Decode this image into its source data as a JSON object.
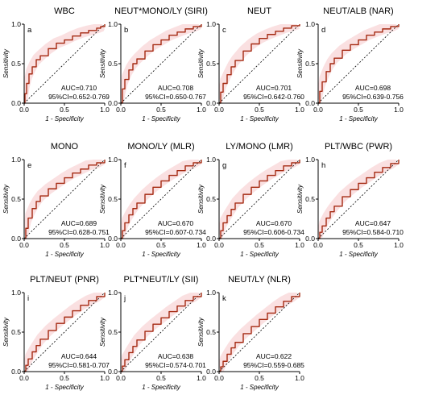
{
  "chart_data": [
    {
      "type": "line",
      "letter": "a",
      "title": "WBC",
      "xlabel": "1 - Specificity",
      "ylabel": "Sensitivity",
      "xlim": [
        0,
        1
      ],
      "ylim": [
        0,
        1
      ],
      "xticks": [
        "0.0",
        "0.5",
        "1.0"
      ],
      "yticks": [
        "0.0",
        "0.5",
        "1.0"
      ],
      "auc_label": "AUC=0.710",
      "ci_label": "95%CI=0.652-0.769",
      "series": [
        {
          "x": [
            0,
            0.01,
            0.03,
            0.06,
            0.1,
            0.15,
            0.2,
            0.3,
            0.4,
            0.5,
            0.6,
            0.7,
            0.8,
            0.9,
            0.95,
            1
          ],
          "y": [
            0,
            0.12,
            0.25,
            0.37,
            0.46,
            0.55,
            0.6,
            0.69,
            0.76,
            0.8,
            0.85,
            0.89,
            0.92,
            0.95,
            0.97,
            1
          ]
        }
      ],
      "reference_line": {
        "x": [
          0,
          1
        ],
        "y": [
          0,
          1
        ]
      }
    },
    {
      "type": "line",
      "letter": "b",
      "title": "NEUT*MONO/LY (SIRI)",
      "xlabel": "1 - Specificity",
      "ylabel": "Sensitivity",
      "xlim": [
        0,
        1
      ],
      "ylim": [
        0,
        1
      ],
      "xticks": [
        "0.0",
        "0.5",
        "1.0"
      ],
      "yticks": [
        "0.0",
        "0.5",
        "1.0"
      ],
      "auc_label": "AUC=0.708",
      "ci_label": "95%CI=0.650-0.767",
      "series": [
        {
          "x": [
            0,
            0.02,
            0.05,
            0.1,
            0.15,
            0.2,
            0.3,
            0.4,
            0.5,
            0.6,
            0.7,
            0.8,
            0.9,
            1
          ],
          "y": [
            0,
            0.18,
            0.3,
            0.42,
            0.5,
            0.56,
            0.66,
            0.74,
            0.8,
            0.86,
            0.9,
            0.94,
            0.97,
            1
          ]
        }
      ],
      "reference_line": {
        "x": [
          0,
          1
        ],
        "y": [
          0,
          1
        ]
      }
    },
    {
      "type": "line",
      "letter": "c",
      "title": "NEUT",
      "xlabel": "1 - Specificity",
      "ylabel": "Sensitivity",
      "xlim": [
        0,
        1
      ],
      "ylim": [
        0,
        1
      ],
      "xticks": [
        "0.0",
        "0.5",
        "1.0"
      ],
      "yticks": [
        "0.0",
        "0.5",
        "1.0"
      ],
      "auc_label": "AUC=0.701",
      "ci_label": "95%CI=0.642-0.760",
      "series": [
        {
          "x": [
            0,
            0.02,
            0.05,
            0.1,
            0.15,
            0.2,
            0.3,
            0.4,
            0.5,
            0.6,
            0.7,
            0.8,
            0.9,
            1
          ],
          "y": [
            0,
            0.14,
            0.25,
            0.36,
            0.46,
            0.54,
            0.66,
            0.75,
            0.82,
            0.87,
            0.91,
            0.95,
            0.98,
            1
          ]
        }
      ],
      "reference_line": {
        "x": [
          0,
          1
        ],
        "y": [
          0,
          1
        ]
      }
    },
    {
      "type": "line",
      "letter": "d",
      "title": "NEUT/ALB (NAR)",
      "xlabel": "1 - Specificity",
      "ylabel": "Sensitivity",
      "xlim": [
        0,
        1
      ],
      "ylim": [
        0,
        1
      ],
      "xticks": [
        "0.0",
        "0.5",
        "1.0"
      ],
      "yticks": [
        "0.0",
        "0.5",
        "1.0"
      ],
      "auc_label": "AUC=0.698",
      "ci_label": "95%CI=0.639-0.756",
      "series": [
        {
          "x": [
            0,
            0.02,
            0.05,
            0.1,
            0.15,
            0.2,
            0.3,
            0.4,
            0.5,
            0.6,
            0.7,
            0.8,
            0.9,
            1
          ],
          "y": [
            0,
            0.15,
            0.27,
            0.4,
            0.5,
            0.57,
            0.67,
            0.74,
            0.8,
            0.86,
            0.9,
            0.94,
            0.97,
            1
          ]
        }
      ],
      "reference_line": {
        "x": [
          0,
          1
        ],
        "y": [
          0,
          1
        ]
      }
    },
    {
      "type": "line",
      "letter": "e",
      "title": "MONO",
      "xlabel": "1 - Specificity",
      "ylabel": "Sensitivity",
      "xlim": [
        0,
        1
      ],
      "ylim": [
        0,
        1
      ],
      "xticks": [
        "0.0",
        "0.5",
        "1.0"
      ],
      "yticks": [
        "0.0",
        "0.5",
        "1.0"
      ],
      "auc_label": "AUC=0.689",
      "ci_label": "95%CI=0.628-0.751",
      "series": [
        {
          "x": [
            0,
            0.02,
            0.05,
            0.1,
            0.15,
            0.2,
            0.3,
            0.4,
            0.5,
            0.6,
            0.7,
            0.8,
            0.9,
            1
          ],
          "y": [
            0,
            0.13,
            0.26,
            0.38,
            0.47,
            0.54,
            0.63,
            0.7,
            0.77,
            0.83,
            0.88,
            0.93,
            0.96,
            1
          ]
        }
      ],
      "reference_line": {
        "x": [
          0,
          1
        ],
        "y": [
          0,
          1
        ]
      }
    },
    {
      "type": "line",
      "letter": "f",
      "title": "MONO/LY (MLR)",
      "xlabel": "1 - Specificity",
      "ylabel": "Sensitivity",
      "xlim": [
        0,
        1
      ],
      "ylim": [
        0,
        1
      ],
      "xticks": [
        "0.0",
        "0.5",
        "1.0"
      ],
      "yticks": [
        "0.0",
        "0.5",
        "1.0"
      ],
      "auc_label": "AUC=0.670",
      "ci_label": "95%CI=0.607-0.734",
      "series": [
        {
          "x": [
            0,
            0.02,
            0.05,
            0.1,
            0.15,
            0.2,
            0.3,
            0.4,
            0.5,
            0.6,
            0.7,
            0.8,
            0.9,
            1
          ],
          "y": [
            0,
            0.1,
            0.2,
            0.3,
            0.38,
            0.45,
            0.56,
            0.65,
            0.73,
            0.8,
            0.86,
            0.92,
            0.96,
            1
          ]
        }
      ],
      "reference_line": {
        "x": [
          0,
          1
        ],
        "y": [
          0,
          1
        ]
      }
    },
    {
      "type": "line",
      "letter": "g",
      "title": "LY/MONO (LMR)",
      "xlabel": "1 - Specificity",
      "ylabel": "Sensitivity",
      "xlim": [
        0,
        1
      ],
      "ylim": [
        0,
        1
      ],
      "xticks": [
        "0.0",
        "0.5",
        "1.0"
      ],
      "yticks": [
        "0.0",
        "0.5",
        "1.0"
      ],
      "auc_label": "AUC=0.670",
      "ci_label": "95%CI=0.606-0.734",
      "series": [
        {
          "x": [
            0,
            0.02,
            0.05,
            0.1,
            0.15,
            0.2,
            0.3,
            0.4,
            0.5,
            0.6,
            0.7,
            0.8,
            0.9,
            1
          ],
          "y": [
            0,
            0.1,
            0.2,
            0.29,
            0.37,
            0.45,
            0.56,
            0.65,
            0.73,
            0.8,
            0.86,
            0.92,
            0.96,
            1
          ]
        }
      ],
      "reference_line": {
        "x": [
          0,
          1
        ],
        "y": [
          0,
          1
        ]
      }
    },
    {
      "type": "line",
      "letter": "h",
      "title": "PLT/WBC (PWR)",
      "xlabel": "1 - Specificity",
      "ylabel": "Sensitivity",
      "xlim": [
        0,
        1
      ],
      "ylim": [
        0,
        1
      ],
      "xticks": [
        "0.0",
        "0.5",
        "1.0"
      ],
      "yticks": [
        "0.0",
        "0.5",
        "1.0"
      ],
      "auc_label": "AUC=0.647",
      "ci_label": "95%CI=0.584-0.710",
      "series": [
        {
          "x": [
            0,
            0.02,
            0.05,
            0.1,
            0.15,
            0.2,
            0.3,
            0.4,
            0.5,
            0.6,
            0.7,
            0.8,
            0.9,
            1
          ],
          "y": [
            0,
            0.08,
            0.16,
            0.26,
            0.34,
            0.41,
            0.53,
            0.62,
            0.7,
            0.77,
            0.84,
            0.9,
            0.95,
            1
          ]
        }
      ],
      "reference_line": {
        "x": [
          0,
          1
        ],
        "y": [
          0,
          1
        ]
      }
    },
    {
      "type": "line",
      "letter": "i",
      "title": "PLT/NEUT (PNR)",
      "xlabel": "1 - Specificity",
      "ylabel": "Sensitivity",
      "xlim": [
        0,
        1
      ],
      "ylim": [
        0,
        1
      ],
      "xticks": [
        "0.0",
        "0.5",
        "1.0"
      ],
      "yticks": [
        "0.0",
        "0.5",
        "1.0"
      ],
      "auc_label": "AUC=0.644",
      "ci_label": "95%CI=0.581-0.707",
      "series": [
        {
          "x": [
            0,
            0.02,
            0.05,
            0.1,
            0.15,
            0.2,
            0.3,
            0.4,
            0.5,
            0.6,
            0.7,
            0.8,
            0.9,
            1
          ],
          "y": [
            0,
            0.08,
            0.16,
            0.25,
            0.33,
            0.41,
            0.52,
            0.61,
            0.69,
            0.77,
            0.84,
            0.9,
            0.95,
            1
          ]
        }
      ],
      "reference_line": {
        "x": [
          0,
          1
        ],
        "y": [
          0,
          1
        ]
      }
    },
    {
      "type": "line",
      "letter": "j",
      "title": "PLT*NEUT/LY (SII)",
      "xlabel": "1 - Specificity",
      "ylabel": "Sensitivity",
      "xlim": [
        0,
        1
      ],
      "ylim": [
        0,
        1
      ],
      "xticks": [
        "0.0",
        "0.5",
        "1.0"
      ],
      "yticks": [
        "0.0",
        "0.5",
        "1.0"
      ],
      "auc_label": "AUC=0.638",
      "ci_label": "95%CI=0.574-0.701",
      "series": [
        {
          "x": [
            0,
            0.02,
            0.05,
            0.1,
            0.15,
            0.2,
            0.3,
            0.4,
            0.5,
            0.6,
            0.7,
            0.8,
            0.9,
            1
          ],
          "y": [
            0,
            0.07,
            0.15,
            0.24,
            0.32,
            0.4,
            0.51,
            0.6,
            0.68,
            0.76,
            0.83,
            0.9,
            0.95,
            1
          ]
        }
      ],
      "reference_line": {
        "x": [
          0,
          1
        ],
        "y": [
          0,
          1
        ]
      }
    },
    {
      "type": "line",
      "letter": "k",
      "title": "NEUT/LY (NLR)",
      "xlabel": "1 - Specificity",
      "ylabel": "Sensitivity",
      "xlim": [
        0,
        1
      ],
      "ylim": [
        0,
        1
      ],
      "xticks": [
        "0.0",
        "0.5",
        "1.0"
      ],
      "yticks": [
        "0.0",
        "0.5",
        "1.0"
      ],
      "auc_label": "AUC=0.622",
      "ci_label": "95%CI=0.559-0.685",
      "series": [
        {
          "x": [
            0,
            0.02,
            0.05,
            0.1,
            0.15,
            0.2,
            0.3,
            0.4,
            0.5,
            0.6,
            0.7,
            0.8,
            0.9,
            1
          ],
          "y": [
            0,
            0.06,
            0.13,
            0.22,
            0.3,
            0.37,
            0.48,
            0.57,
            0.66,
            0.74,
            0.82,
            0.89,
            0.95,
            1
          ]
        }
      ],
      "reference_line": {
        "x": [
          0,
          1
        ],
        "y": [
          0,
          1
        ]
      }
    }
  ],
  "colors": {
    "roc_line": "#a52a12",
    "ci_band": "#f6c7c9",
    "reference_line": "#000000",
    "axis": "#000000"
  }
}
